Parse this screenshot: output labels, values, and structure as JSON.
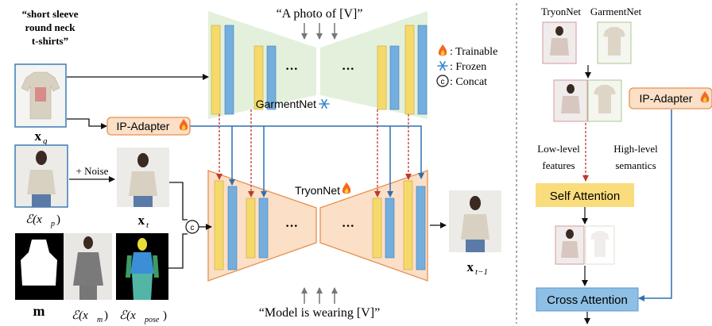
{
  "prompt_top": "“A photo of [V]”",
  "prompt_bottom": "“Model is wearing [V]”",
  "garment_caption": [
    "“short sleeve",
    "round neck",
    "t-shirts”"
  ],
  "garmentnet_label": "GarmentNet",
  "tryonnet_label": "TryonNet",
  "ip_adapter_label": "IP-Adapter",
  "noise_label": "+ Noise",
  "concat_symbol": "c",
  "ellipsis": "···",
  "legend": {
    "trainable": ": Trainable",
    "frozen": ": Frozen",
    "concat": ": Concat"
  },
  "math_labels": {
    "xg": "x",
    "xg_sub": "g",
    "xt": "x",
    "xt_sub": "t",
    "xt1": "x",
    "xt1_sub": "t−1",
    "m": "m",
    "exp": "ℰ(x",
    "exp_sub": "p",
    "exm": "ℰ(x",
    "exm_sub": "m",
    "expose": "ℰ(x",
    "expose_sub": "pose",
    "close_paren": ")"
  },
  "right_panel": {
    "tryonnet": "TryonNet",
    "garmentnet": "GarmentNet",
    "low_level": [
      "Low-level",
      "features"
    ],
    "high_level": [
      "High-level",
      "semantics"
    ],
    "self_attention": "Self Attention",
    "cross_attention": "Cross Attention",
    "ip_adapter": "IP-Adapter"
  },
  "colors": {
    "yellow_block": "#f6d96b",
    "blue_block": "#74aede",
    "green_bg": "#e3f0db",
    "orange_bg": "#fbdfc7",
    "orange_border": "#e69050",
    "blue_arrow": "#2f6fb3",
    "red_arrow": "#c0392b",
    "self_attention_bg": "#f9dc7c",
    "cross_attention_bg": "#8ebfe4"
  }
}
